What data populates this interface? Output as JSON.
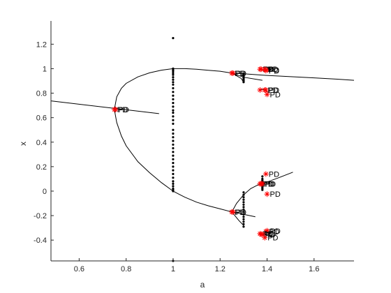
{
  "chart_data": {
    "type": "scatter",
    "xlabel": "a",
    "ylabel": "x",
    "xlim": [
      0.48,
      1.77
    ],
    "ylim": [
      -0.57,
      1.39
    ],
    "xticks": [
      0.6,
      0.8,
      1,
      1.2,
      1.4,
      1.6
    ],
    "yticks": [
      -0.4,
      -0.2,
      0,
      0.2,
      0.4,
      0.6,
      0.8,
      1,
      1.2
    ],
    "xtick_labels": [
      "0.6",
      "0.8",
      "1",
      "1.2",
      "1.4",
      "1.6"
    ],
    "ytick_labels": [
      "-0.4",
      "-0.2",
      "0",
      "0.2",
      "0.4",
      "0.6",
      "0.8",
      "1",
      "1.2"
    ],
    "grid": false,
    "colors": {
      "axes": "#262626",
      "curve": "#000000",
      "marker": "#ff0000",
      "dots": "#000000"
    },
    "curves": [
      {
        "x": [
          0.48,
          0.94
        ],
        "y": [
          0.737,
          0.633
        ]
      },
      {
        "x": [
          0.75,
          0.76,
          0.78,
          0.8,
          0.85,
          0.9,
          0.95,
          1.0,
          1.05,
          1.1,
          1.15,
          1.2,
          1.25
        ],
        "y": [
          0.667,
          0.77,
          0.84,
          0.88,
          0.933,
          0.966,
          0.988,
          1.0,
          1.0,
          0.995,
          0.987,
          0.979,
          0.964
        ]
      },
      {
        "x": [
          1.25,
          1.3,
          1.4,
          1.5,
          1.6,
          1.7,
          1.77
        ],
        "y": [
          0.964,
          0.958,
          0.945,
          0.935,
          0.925,
          0.914,
          0.905
        ]
      },
      {
        "x": [
          0.75,
          0.76,
          0.78,
          0.8,
          0.85,
          0.9,
          0.95,
          1.0,
          1.05,
          1.1,
          1.15,
          1.2,
          1.25
        ],
        "y": [
          0.667,
          0.56,
          0.45,
          0.37,
          0.24,
          0.15,
          0.07,
          0.0,
          -0.05,
          -0.09,
          -0.12,
          -0.145,
          -0.17
        ]
      },
      {
        "x": [
          1.25,
          1.3,
          1.35
        ],
        "y": [
          -0.17,
          -0.19,
          -0.21
        ]
      },
      {
        "x": [
          1.25,
          1.3,
          1.38
        ],
        "y": [
          0.964,
          0.93,
          0.905
        ]
      },
      {
        "x": [
          1.25,
          1.29,
          1.3
        ],
        "y": [
          0.964,
          0.92,
          0.89
        ]
      },
      {
        "x": [
          1.37,
          1.4
        ],
        "y": [
          0.996,
          0.99
        ]
      },
      {
        "x": [
          1.37,
          1.39,
          1.41
        ],
        "y": [
          0.83,
          0.83,
          0.8
        ]
      },
      {
        "x": [
          1.25,
          1.27,
          1.3,
          1.33,
          1.36,
          1.38
        ],
        "y": [
          -0.17,
          -0.1,
          -0.03,
          0.02,
          0.05,
          0.06
        ]
      },
      {
        "x": [
          1.38,
          1.45,
          1.51
        ],
        "y": [
          0.06,
          0.11,
          0.155
        ]
      },
      {
        "x": [
          1.25,
          1.28,
          1.3
        ],
        "y": [
          -0.17,
          -0.24,
          -0.28
        ]
      },
      {
        "x": [
          1.37,
          1.41
        ],
        "y": [
          -0.34,
          -0.37
        ]
      }
    ],
    "dot_columns": [
      {
        "x": 1.0,
        "y": [
          1.25,
          1.0,
          0.99,
          0.98,
          0.965,
          0.95,
          0.93,
          0.91,
          0.89,
          0.87,
          0.84,
          0.81,
          0.78,
          0.75,
          0.72,
          0.69,
          0.66,
          0.64,
          0.61,
          0.58,
          0.55,
          0.5,
          0.47,
          0.44,
          0.41,
          0.38,
          0.35,
          0.32,
          0.29,
          0.26,
          0.23,
          0.2,
          0.17,
          0.14,
          0.11,
          0.08,
          0.06,
          0.04,
          0.02,
          0.01,
          0.0,
          -0.57
        ]
      },
      {
        "x": 1.3,
        "y": [
          0.96,
          0.95,
          0.94,
          0.93,
          0.92,
          0.91,
          0.9,
          0.89,
          -0.01,
          -0.03,
          -0.05,
          -0.07,
          -0.09,
          -0.11,
          -0.13,
          -0.15,
          -0.17,
          -0.19,
          -0.21,
          -0.23,
          -0.25,
          -0.27,
          -0.29
        ]
      },
      {
        "x": 1.38,
        "y": [
          0.12,
          0.1,
          0.09,
          0.08,
          0.07,
          0.06,
          0.05,
          0.04,
          0.03,
          0.02,
          0.01
        ]
      }
    ],
    "points": [
      {
        "x": 0.75,
        "y": 0.667,
        "label": "PD"
      },
      {
        "x": 0.755,
        "y": 0.667,
        "label": "PD"
      },
      {
        "x": 1.25,
        "y": 0.964,
        "label": "PD"
      },
      {
        "x": 1.255,
        "y": 0.964,
        "label": "PD"
      },
      {
        "x": 1.25,
        "y": -0.17,
        "label": "PD"
      },
      {
        "x": 1.255,
        "y": -0.17,
        "label": "PD"
      },
      {
        "x": 1.37,
        "y": 0.996,
        "label": "PD"
      },
      {
        "x": 1.375,
        "y": 0.996,
        "label": "PD"
      },
      {
        "x": 1.39,
        "y": 0.996,
        "label": "PD"
      },
      {
        "x": 1.395,
        "y": 0.99,
        "label": "PD"
      },
      {
        "x": 1.395,
        "y": 0.984,
        "label": "PD"
      },
      {
        "x": 1.39,
        "y": 0.826,
        "label": "PD"
      },
      {
        "x": 1.395,
        "y": 0.826,
        "label": "PD"
      },
      {
        "x": 1.37,
        "y": 0.826,
        "label": ""
      },
      {
        "x": 1.4,
        "y": 0.79,
        "label": "PD"
      },
      {
        "x": 1.395,
        "y": 0.14,
        "label": "PD"
      },
      {
        "x": 1.37,
        "y": 0.06,
        "label": "PD"
      },
      {
        "x": 1.375,
        "y": 0.06,
        "label": "PD"
      },
      {
        "x": 1.38,
        "y": 0.06,
        "label": "PD"
      },
      {
        "x": 1.4,
        "y": -0.024,
        "label": "PD"
      },
      {
        "x": 1.395,
        "y": -0.33,
        "label": "PD"
      },
      {
        "x": 1.4,
        "y": -0.324,
        "label": "PD"
      },
      {
        "x": 1.37,
        "y": -0.348,
        "label": "PD"
      },
      {
        "x": 1.375,
        "y": -0.353,
        "label": "PD"
      },
      {
        "x": 1.38,
        "y": -0.353,
        "label": "PD"
      },
      {
        "x": 1.39,
        "y": -0.38,
        "label": "PD"
      }
    ]
  }
}
